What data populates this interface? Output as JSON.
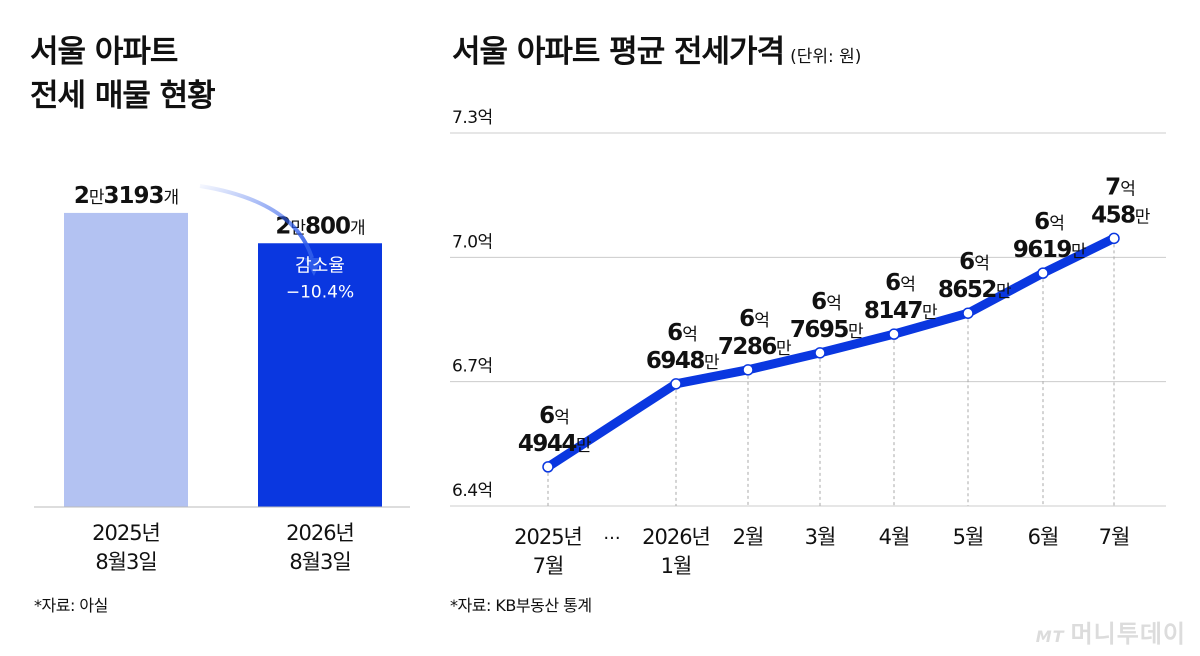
{
  "left_panel": {
    "title_line1": "서울 아파트",
    "title_line2": "전세 매물 현황",
    "source": "*자료: 아실"
  },
  "right_panel": {
    "title": "서울 아파트 평균 전세가격",
    "unit": "(단위: 원)",
    "source": "*자료: KB부동산 통계"
  },
  "watermark": {
    "prefix": "MT",
    "text": "머니투데이"
  },
  "colors": {
    "bar_2025": "#b3c2f2",
    "bar_2026": "#0a37e0",
    "line": "#0a37e0",
    "grid": "#cccccc",
    "arrow": "#2d5bea"
  },
  "chart_data": [
    {
      "type": "bar",
      "title": "서울 아파트 전세 매물 현황",
      "categories": [
        [
          "2025년",
          "8월3일"
        ],
        [
          "2026년",
          "8월3일"
        ]
      ],
      "values": [
        23193,
        20800
      ],
      "value_labels": [
        {
          "big1": "2",
          "small1": "만",
          "big2": "3193",
          "small2": "개"
        },
        {
          "big1": "2",
          "small1": "만",
          "big2": "800",
          "small2": "개"
        }
      ],
      "annotation": {
        "label": "감소율",
        "value": "−10.4%"
      },
      "ylim": [
        0,
        25000
      ]
    },
    {
      "type": "line",
      "title": "서울 아파트 평균 전세가격",
      "unit": "(단위: 원)",
      "x": [
        [
          "2025년",
          "7월"
        ],
        [
          "2026년",
          "1월"
        ],
        [
          "2월"
        ],
        [
          "3월"
        ],
        [
          "4월"
        ],
        [
          "5월"
        ],
        [
          "6월"
        ],
        [
          "7월"
        ]
      ],
      "x_break_marker": "···",
      "values": [
        649440000,
        669480000,
        672860000,
        676950000,
        681470000,
        686520000,
        696190000,
        704580000
      ],
      "point_labels": [
        {
          "eok": "6",
          "eok_unit": "억",
          "man": "4944",
          "man_unit": "만"
        },
        {
          "eok": "6",
          "eok_unit": "억",
          "man": "6948",
          "man_unit": "만"
        },
        {
          "eok": "6",
          "eok_unit": "억",
          "man": "7286",
          "man_unit": "만"
        },
        {
          "eok": "6",
          "eok_unit": "억",
          "man": "7695",
          "man_unit": "만"
        },
        {
          "eok": "6",
          "eok_unit": "억",
          "man": "8147",
          "man_unit": "만"
        },
        {
          "eok": "6",
          "eok_unit": "억",
          "man": "8652",
          "man_unit": "만"
        },
        {
          "eok": "6",
          "eok_unit": "억",
          "man": "9619",
          "man_unit": "만"
        },
        {
          "eok": "7",
          "eok_unit": "억",
          "man": "458",
          "man_unit": "만"
        }
      ],
      "yticks": [
        640000000,
        670000000,
        700000000,
        730000000
      ],
      "ytick_labels": [
        "6.4억",
        "6.7억",
        "7.0억",
        "7.3억"
      ],
      "ylim": [
        640000000,
        730000000
      ],
      "grid": true
    }
  ]
}
